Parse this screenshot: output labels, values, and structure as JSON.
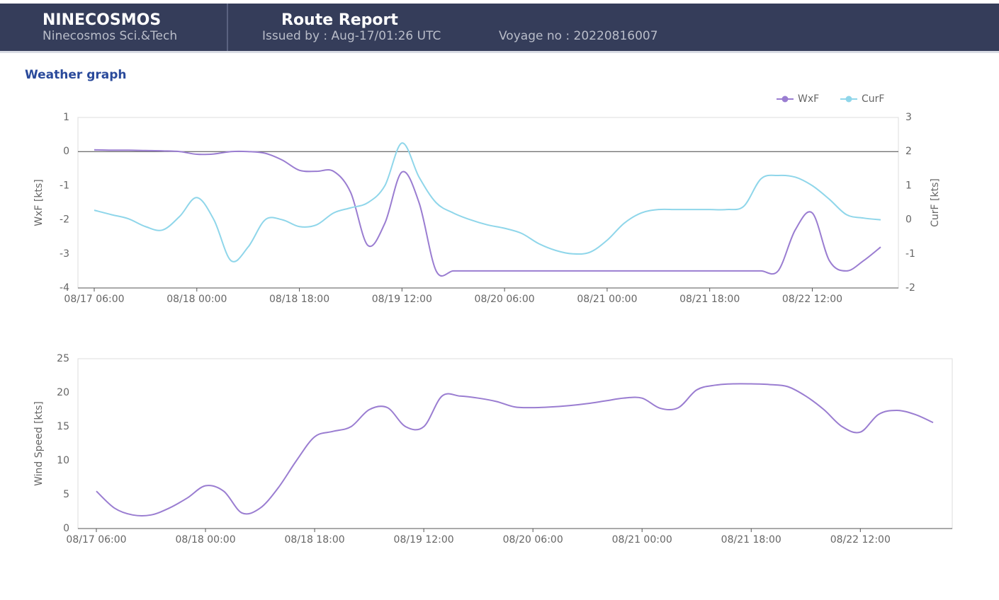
{
  "header": {
    "brand": "NINECOSMOS",
    "company": "Ninecosmos Sci.&Tech",
    "title": "Route Report",
    "issued": "Issued by : Aug-17/01:26 UTC",
    "voyage": "Voyage no : 20220816007"
  },
  "section_title": "Weather graph",
  "chart_data": [
    {
      "type": "line",
      "x": [
        "08/17 06:00",
        "08/17 09:00",
        "08/17 12:00",
        "08/17 15:00",
        "08/17 18:00",
        "08/17 21:00",
        "08/18 00:00",
        "08/18 03:00",
        "08/18 06:00",
        "08/18 09:00",
        "08/18 12:00",
        "08/18 15:00",
        "08/18 18:00",
        "08/18 21:00",
        "08/19 00:00",
        "08/19 03:00",
        "08/19 06:00",
        "08/19 09:00",
        "08/19 12:00",
        "08/19 15:00",
        "08/19 18:00",
        "08/19 21:00",
        "08/20 00:00",
        "08/20 03:00",
        "08/20 06:00",
        "08/20 09:00",
        "08/20 12:00",
        "08/20 15:00",
        "08/20 18:00",
        "08/20 21:00",
        "08/21 00:00",
        "08/21 03:00",
        "08/21 06:00",
        "08/21 09:00",
        "08/21 12:00",
        "08/21 15:00",
        "08/21 18:00",
        "08/21 21:00",
        "08/22 00:00",
        "08/22 03:00",
        "08/22 06:00",
        "08/22 09:00",
        "08/22 12:00",
        "08/22 15:00",
        "08/22 18:00",
        "08/22 21:00",
        "08/23 00:00"
      ],
      "xticks": [
        "08/17 06:00",
        "08/18 00:00",
        "08/18 18:00",
        "08/19 12:00",
        "08/20 06:00",
        "08/21 00:00",
        "08/21 18:00",
        "08/22 12:00"
      ],
      "ylabel": "WxF [kts]",
      "ylim": [
        -4,
        1
      ],
      "yticks": [
        -4,
        -3,
        -2,
        -1,
        0,
        1
      ],
      "y2label": "CurF [kts]",
      "y2lim": [
        -2,
        3
      ],
      "y2ticks": [
        -2,
        -1,
        0,
        1,
        2,
        3
      ],
      "legend": "top-right",
      "series": [
        {
          "name": "WxF",
          "color": "#9a7dd1",
          "values": [
            0.05,
            0.04,
            0.04,
            0.03,
            0.02,
            0,
            -0.08,
            -0.07,
            0,
            0,
            -0.05,
            -0.25,
            -0.55,
            -0.58,
            -0.58,
            -1.2,
            -2.75,
            -2.1,
            -0.6,
            -1.5,
            -3.5,
            -3.5,
            -3.5,
            -3.5,
            -3.5,
            -3.5,
            -3.5,
            -3.5,
            -3.5,
            -3.5,
            -3.5,
            -3.5,
            -3.5,
            -3.5,
            -3.5,
            -3.5,
            -3.5,
            -3.5,
            -3.5,
            -3.5,
            -3.5,
            -2.3,
            -1.8,
            -3.2,
            -3.5,
            -3.2,
            -2.8
          ]
        },
        {
          "name": "CurF",
          "color": "#8fd6ea",
          "axis": "y2",
          "values": [
            0.28,
            0.15,
            0.03,
            -0.2,
            -0.3,
            0.1,
            0.65,
            0,
            -1.2,
            -0.8,
            0,
            0,
            -0.2,
            -0.15,
            0.2,
            0.35,
            0.5,
            1.0,
            2.25,
            1.25,
            0.5,
            0.2,
            0,
            -0.15,
            -0.25,
            -0.4,
            -0.7,
            -0.9,
            -1.0,
            -0.95,
            -0.6,
            -0.1,
            0.2,
            0.3,
            0.3,
            0.3,
            0.3,
            0.3,
            0.4,
            1.2,
            1.3,
            1.25,
            1.0,
            0.6,
            0.15,
            0.05,
            0.0
          ]
        }
      ]
    },
    {
      "type": "line",
      "x": [
        "08/17 06:00",
        "08/17 09:00",
        "08/17 12:00",
        "08/17 15:00",
        "08/17 18:00",
        "08/17 21:00",
        "08/18 00:00",
        "08/18 03:00",
        "08/18 06:00",
        "08/18 09:00",
        "08/18 12:00",
        "08/18 15:00",
        "08/18 18:00",
        "08/18 21:00",
        "08/19 00:00",
        "08/19 03:00",
        "08/19 06:00",
        "08/19 09:00",
        "08/19 12:00",
        "08/19 15:00",
        "08/19 18:00",
        "08/19 21:00",
        "08/20 00:00",
        "08/20 03:00",
        "08/20 06:00",
        "08/20 09:00",
        "08/20 12:00",
        "08/20 15:00",
        "08/20 18:00",
        "08/20 21:00",
        "08/21 00:00",
        "08/21 03:00",
        "08/21 06:00",
        "08/21 09:00",
        "08/21 12:00",
        "08/21 15:00",
        "08/21 18:00",
        "08/21 21:00",
        "08/22 00:00",
        "08/22 03:00",
        "08/22 06:00",
        "08/22 09:00",
        "08/22 12:00",
        "08/22 15:00",
        "08/22 18:00",
        "08/22 21:00",
        "08/23 00:00"
      ],
      "xticks": [
        "08/17 06:00",
        "08/18 00:00",
        "08/18 18:00",
        "08/19 12:00",
        "08/20 06:00",
        "08/21 00:00",
        "08/21 18:00",
        "08/22 12:00"
      ],
      "ylabel": "Wind Speed [kts]",
      "ylim": [
        0,
        25
      ],
      "yticks": [
        0,
        5,
        10,
        15,
        20,
        25
      ],
      "color": "#9a7dd1",
      "values": [
        5.5,
        3,
        2,
        2,
        3,
        4.5,
        6.3,
        5.5,
        2.3,
        3,
        6,
        10,
        13.5,
        14.3,
        15,
        17.5,
        17.8,
        15,
        15,
        19.5,
        19.5,
        19.2,
        18.7,
        17.9,
        17.8,
        17.9,
        18.1,
        18.4,
        18.8,
        19.2,
        19.2,
        17.7,
        17.8,
        20.4,
        21.1,
        21.3,
        21.3,
        21.2,
        20.9,
        19.5,
        17.5,
        15,
        14.2,
        16.8,
        17.4,
        16.8,
        15.6
      ]
    }
  ]
}
